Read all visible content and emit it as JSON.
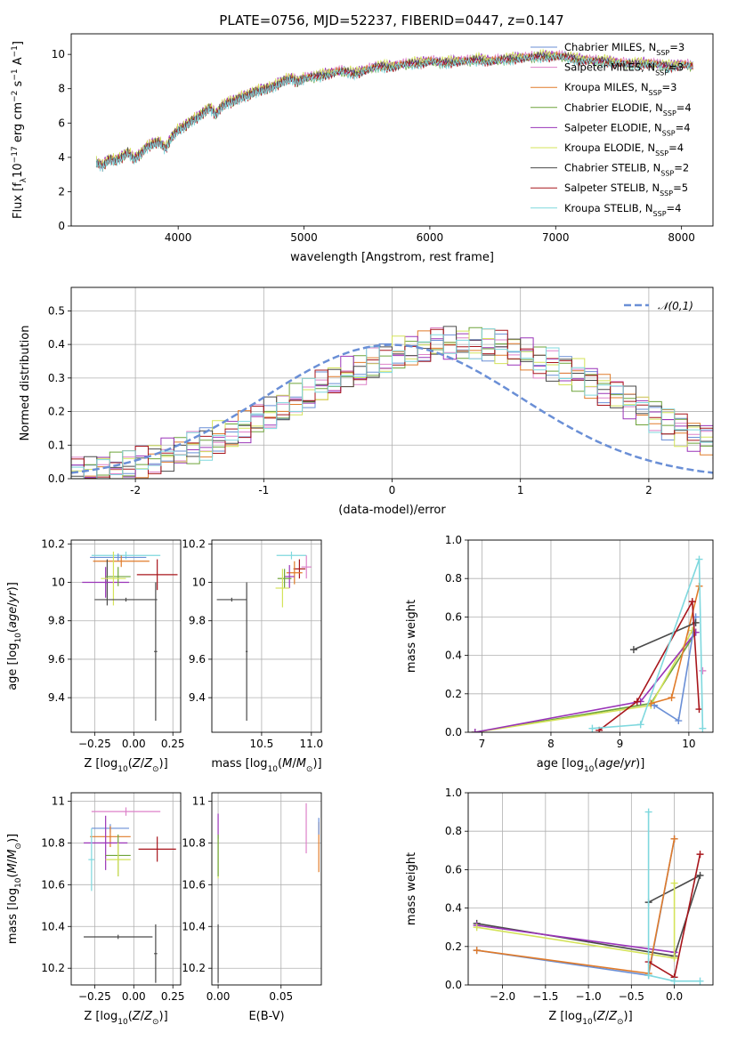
{
  "figure": {
    "title": "PLATE=0756, MJD=52237, FIBERID=0447, z=0.147"
  },
  "colors": {
    "chabrier_miles": "#6a8fd6",
    "salpeter_miles": "#dd82c9",
    "kroupa_miles": "#e07b2a",
    "chabrier_elodie": "#6ea33a",
    "salpeter_elodie": "#9a34b8",
    "kroupa_elodie": "#d4e35a",
    "chabrier_stelib": "#4a4a4a",
    "salpeter_stelib": "#a8161c",
    "kroupa_stelib": "#7fd8de",
    "normal_curve": "#6a8fd6",
    "grid": "#b0b0b0"
  },
  "chart_data": [
    {
      "id": "spectrum",
      "type": "line",
      "xlabel": "wavelength [Angstrom, rest frame]",
      "ylabel_html": "Flux [f<tspan baseline-shift='sub' font-size='9'>λ</tspan>10<tspan baseline-shift='super' font-size='9'>−17</tspan> erg cm<tspan baseline-shift='super' font-size='9'>−2</tspan> s<tspan baseline-shift='super' font-size='9'>−1</tspan> A<tspan baseline-shift='super' font-size='9'>−1</tspan>]",
      "xlim": [
        3150,
        8250
      ],
      "ylim": [
        0,
        11.2
      ],
      "xticks": [
        4000,
        5000,
        6000,
        7000,
        8000
      ],
      "yticks": [
        0,
        2,
        4,
        6,
        8,
        10
      ],
      "grid": false,
      "legend_position": "top-right",
      "data_x": [
        3350,
        3400,
        3450,
        3500,
        3550,
        3600,
        3650,
        3700,
        3750,
        3800,
        3850,
        3900,
        3950,
        4000,
        4050,
        4100,
        4150,
        4200,
        4250,
        4300,
        4350,
        4400,
        4450,
        4500,
        4550,
        4600,
        4650,
        4700,
        4750,
        4800,
        4850,
        4900,
        4950,
        5000,
        5100,
        5200,
        5300,
        5400,
        5500,
        5600,
        5700,
        5800,
        5900,
        6000,
        6100,
        6200,
        6300,
        6400,
        6500,
        6600,
        6700,
        6800,
        6900,
        7000,
        7100,
        7200,
        7300,
        7400,
        7500,
        7600,
        7700,
        7800,
        7900,
        8000,
        8100
      ],
      "data_y": [
        3.7,
        3.5,
        3.9,
        3.8,
        4.0,
        4.3,
        3.9,
        4.2,
        4.6,
        4.8,
        4.9,
        4.5,
        5.2,
        5.6,
        5.8,
        6.1,
        6.3,
        6.6,
        6.9,
        6.5,
        7.0,
        7.2,
        7.3,
        7.5,
        7.6,
        7.8,
        7.9,
        8.0,
        8.1,
        8.3,
        8.5,
        8.6,
        8.4,
        8.6,
        8.7,
        8.9,
        9.0,
        8.9,
        9.1,
        9.3,
        9.3,
        9.4,
        9.5,
        9.6,
        9.5,
        9.6,
        9.6,
        9.7,
        9.6,
        9.7,
        9.8,
        9.8,
        9.9,
        9.9,
        9.8,
        9.7,
        9.6,
        9.6,
        9.5,
        9.4,
        9.5,
        9.4,
        9.3,
        9.4,
        9.3
      ],
      "series": [
        {
          "label_html": "Chabrier MILES, N<tspan baseline-shift='sub' font-size='8'>SSP</tspan>=3",
          "color_key": "chabrier_miles",
          "offset": 0.05
        },
        {
          "label_html": "Salpeter MILES, N<tspan baseline-shift='sub' font-size='8'>SSP</tspan>=3",
          "color_key": "salpeter_miles",
          "offset": 0.1
        },
        {
          "label_html": "Kroupa MILES, N<tspan baseline-shift='sub' font-size='8'>SSP</tspan>=3",
          "color_key": "kroupa_miles",
          "offset": 0.0
        },
        {
          "label_html": "Chabrier ELODIE, N<tspan baseline-shift='sub' font-size='8'>SSP</tspan>=4",
          "color_key": "chabrier_elodie",
          "offset": -0.05
        },
        {
          "label_html": "Salpeter ELODIE, N<tspan baseline-shift='sub' font-size='8'>SSP</tspan>=4",
          "color_key": "salpeter_elodie",
          "offset": 0.08
        },
        {
          "label_html": "Kroupa ELODIE, N<tspan baseline-shift='sub' font-size='8'>SSP</tspan>=4",
          "color_key": "kroupa_elodie",
          "offset": 0.12
        },
        {
          "label_html": "Chabrier STELIB, N<tspan baseline-shift='sub' font-size='8'>SSP</tspan>=2",
          "color_key": "chabrier_stelib",
          "offset": 0.0
        },
        {
          "label_html": "Salpeter STELIB, N<tspan baseline-shift='sub' font-size='8'>SSP</tspan>=5",
          "color_key": "salpeter_stelib",
          "offset": -0.08
        },
        {
          "label_html": "Kroupa STELIB, N<tspan baseline-shift='sub' font-size='8'>SSP</tspan>=4",
          "color_key": "kroupa_stelib",
          "offset": -0.1
        }
      ]
    },
    {
      "id": "residual_histogram",
      "type": "line",
      "xlabel": "(data-model)/error",
      "ylabel": "Normed distribution",
      "xlim": [
        -2.5,
        2.5
      ],
      "ylim": [
        0,
        0.57
      ],
      "xticks": [
        -2,
        -1,
        0,
        1,
        2
      ],
      "yticks": [
        0.0,
        0.1,
        0.2,
        0.3,
        0.4,
        0.5
      ],
      "grid": true,
      "legend_position": "top-right",
      "normal_label": "𝒩(0,1)",
      "bin_width": 0.1,
      "bin_start": -2.5,
      "hist_base": [
        0.02,
        0.02,
        0.03,
        0.03,
        0.04,
        0.05,
        0.06,
        0.07,
        0.08,
        0.09,
        0.1,
        0.12,
        0.13,
        0.15,
        0.17,
        0.19,
        0.21,
        0.23,
        0.25,
        0.27,
        0.29,
        0.31,
        0.32,
        0.34,
        0.35,
        0.37,
        0.38,
        0.39,
        0.4,
        0.4,
        0.4,
        0.4,
        0.4,
        0.39,
        0.38,
        0.37,
        0.35,
        0.34,
        0.32,
        0.31,
        0.29,
        0.27,
        0.25,
        0.23,
        0.21,
        0.19,
        0.17,
        0.15,
        0.13,
        0.12,
        0.1,
        0.09,
        0.08,
        0.07,
        0.06,
        0.05,
        0.04,
        0.03,
        0.03,
        0.02
      ]
    },
    {
      "id": "age_vs_Z",
      "type": "scatter",
      "xlabel_html": "Z [log<tspan baseline-shift='sub' font-size='9'>10</tspan>(<tspan font-style='italic'>Z</tspan>/<tspan font-style='italic'>Z</tspan><tspan baseline-shift='sub' font-size='9'>⊙</tspan>)]",
      "ylabel_html": "age  [log<tspan baseline-shift='sub' font-size='9'>10</tspan>(<tspan font-style='italic'>age</tspan>/<tspan font-style='italic'>yr</tspan>)]",
      "xlim": [
        -0.4,
        0.3
      ],
      "ylim": [
        9.22,
        10.22
      ],
      "xticks": [
        -0.25,
        0.0,
        0.25
      ],
      "xtick_labels": [
        "−0.25",
        "0.00",
        "0.25"
      ],
      "yticks": [
        9.4,
        9.6,
        9.8,
        10.0,
        10.2
      ],
      "grid": true,
      "points": [
        {
          "color_key": "kroupa_stelib",
          "x": -0.05,
          "y": 10.14,
          "xerr": 0.22,
          "yerr": 0.02
        },
        {
          "color_key": "chabrier_miles",
          "x": -0.1,
          "y": 10.13,
          "xerr": 0.18,
          "yerr": 0.02
        },
        {
          "color_key": "kroupa_miles",
          "x": -0.08,
          "y": 10.11,
          "xerr": 0.18,
          "yerr": 0.03
        },
        {
          "color_key": "chabrier_stelib",
          "x": -0.17,
          "y": 10.0,
          "xerr": 0.01,
          "yerr": 0.12
        },
        {
          "color_key": "salpeter_elodie",
          "x": -0.18,
          "y": 10.0,
          "xerr": 0.15,
          "yerr": 0.08
        },
        {
          "color_key": "chabrier_elodie",
          "x": -0.1,
          "y": 10.03,
          "xerr": 0.08,
          "yerr": 0.05
        },
        {
          "color_key": "kroupa_elodie",
          "x": -0.13,
          "y": 10.02,
          "xerr": 0.08,
          "yerr": 0.14
        },
        {
          "color_key": "salpeter_stelib",
          "x": 0.15,
          "y": 10.04,
          "xerr": 0.13,
          "yerr": 0.08
        },
        {
          "color_key": "chabrier_stelib",
          "x": -0.05,
          "y": 9.91,
          "xerr": 0.2,
          "yerr": 0.01
        },
        {
          "color_key": "chabrier_stelib",
          "x": 0.14,
          "y": 9.64,
          "xerr": 0.01,
          "yerr": 0.36
        }
      ]
    },
    {
      "id": "age_vs_mass",
      "type": "scatter",
      "xlabel_html": "mass [log<tspan baseline-shift='sub' font-size='9'>10</tspan>(<tspan font-style='italic'>M</tspan>/<tspan font-style='italic'>M</tspan><tspan baseline-shift='sub' font-size='9'>⊙</tspan>)]",
      "xlim": [
        10.0,
        11.1
      ],
      "ylim": [
        9.22,
        10.22
      ],
      "xticks": [
        10.5,
        11.0
      ],
      "xtick_labels": [
        "10.5",
        "11.0"
      ],
      "yticks": [
        9.4,
        9.6,
        9.8,
        10.0,
        10.2
      ],
      "grid": true,
      "points": [
        {
          "color_key": "kroupa_stelib",
          "x": 10.8,
          "y": 10.14,
          "xerr": 0.15,
          "yerr": 0.02
        },
        {
          "color_key": "salpeter_miles",
          "x": 10.95,
          "y": 10.08,
          "xerr": 0.05,
          "yerr": 0.06
        },
        {
          "color_key": "salpeter_stelib",
          "x": 10.88,
          "y": 10.07,
          "xerr": 0.06,
          "yerr": 0.05
        },
        {
          "color_key": "kroupa_miles",
          "x": 10.83,
          "y": 10.05,
          "xerr": 0.08,
          "yerr": 0.06
        },
        {
          "color_key": "salpeter_elodie",
          "x": 10.78,
          "y": 10.03,
          "xerr": 0.05,
          "yerr": 0.06
        },
        {
          "color_key": "chabrier_elodie",
          "x": 10.73,
          "y": 10.02,
          "xerr": 0.07,
          "yerr": 0.05
        },
        {
          "color_key": "kroupa_elodie",
          "x": 10.71,
          "y": 9.97,
          "xerr": 0.07,
          "yerr": 0.1
        },
        {
          "color_key": "chabrier_stelib",
          "x": 10.35,
          "y": 9.64,
          "xerr": 0.01,
          "yerr": 0.36
        },
        {
          "color_key": "chabrier_stelib",
          "x": 10.2,
          "y": 9.91,
          "xerr": 0.15,
          "yerr": 0.01
        }
      ]
    },
    {
      "id": "weight_vs_age",
      "type": "line",
      "xlabel_html": "age  [log<tspan baseline-shift='sub' font-size='9'>10</tspan>(<tspan font-style='italic'>age</tspan>/<tspan font-style='italic'>yr</tspan>)]",
      "ylabel": "mass weight",
      "xlim": [
        6.8,
        10.35
      ],
      "ylim": [
        0,
        1.0
      ],
      "xticks": [
        7,
        8,
        9,
        10
      ],
      "yticks": [
        0.0,
        0.2,
        0.4,
        0.6,
        0.8,
        1.0
      ],
      "grid": true,
      "series": [
        {
          "color_key": "chabrier_elodie",
          "x": [
            6.9,
            9.45,
            10.1
          ],
          "y": [
            0.0,
            0.15,
            0.52
          ]
        },
        {
          "color_key": "kroupa_elodie",
          "x": [
            6.9,
            9.45,
            10.05
          ],
          "y": [
            0.0,
            0.14,
            0.53
          ]
        },
        {
          "color_key": "salpeter_elodie",
          "x": [
            6.9,
            9.3,
            10.1
          ],
          "y": [
            0.0,
            0.16,
            0.52
          ]
        },
        {
          "color_key": "chabrier_miles",
          "x": [
            9.5,
            9.85,
            10.1
          ],
          "y": [
            0.14,
            0.06,
            0.6
          ]
        },
        {
          "color_key": "kroupa_miles",
          "x": [
            9.45,
            9.75,
            10.15
          ],
          "y": [
            0.15,
            0.18,
            0.76
          ]
        },
        {
          "color_key": "salpeter_miles",
          "x": [
            10.2
          ],
          "y": [
            0.32
          ]
        },
        {
          "color_key": "chabrier_stelib",
          "x": [
            9.2,
            10.1
          ],
          "y": [
            0.43,
            0.57
          ]
        },
        {
          "color_key": "salpeter_stelib",
          "x": [
            8.7,
            9.25,
            10.05,
            10.15
          ],
          "y": [
            0.01,
            0.16,
            0.68,
            0.12
          ]
        },
        {
          "color_key": "kroupa_stelib",
          "x": [
            8.6,
            9.3,
            10.15,
            10.2
          ],
          "y": [
            0.02,
            0.04,
            0.9,
            0.02
          ]
        }
      ]
    },
    {
      "id": "mass_vs_Z",
      "type": "scatter",
      "xlabel_html": "Z [log<tspan baseline-shift='sub' font-size='9'>10</tspan>(<tspan font-style='italic'>Z</tspan>/<tspan font-style='italic'>Z</tspan><tspan baseline-shift='sub' font-size='9'>⊙</tspan>)]",
      "ylabel_html": "mass [log<tspan baseline-shift='sub' font-size='9'>10</tspan>(<tspan font-style='italic'>M</tspan>/<tspan font-style='italic'>M</tspan><tspan baseline-shift='sub' font-size='9'>⊙</tspan>)]",
      "xlim": [
        -0.4,
        0.3
      ],
      "ylim": [
        10.12,
        11.04
      ],
      "xticks": [
        -0.25,
        0.0,
        0.25
      ],
      "xtick_labels": [
        "−0.25",
        "0.00",
        "0.25"
      ],
      "yticks": [
        10.2,
        10.4,
        10.6,
        10.8,
        11.0
      ],
      "grid": true,
      "points": [
        {
          "color_key": "salpeter_miles",
          "x": -0.05,
          "y": 10.95,
          "xerr": 0.22,
          "yerr": 0.02
        },
        {
          "color_key": "chabrier_miles",
          "x": -0.15,
          "y": 10.87,
          "xerr": 0.12,
          "yerr": 0.02
        },
        {
          "color_key": "kroupa_miles",
          "x": -0.15,
          "y": 10.83,
          "xerr": 0.13,
          "yerr": 0.05
        },
        {
          "color_key": "salpeter_elodie",
          "x": -0.18,
          "y": 10.8,
          "xerr": 0.14,
          "yerr": 0.13
        },
        {
          "color_key": "kroupa_stelib",
          "x": -0.27,
          "y": 10.72,
          "xerr": 0.02,
          "yerr": 0.15
        },
        {
          "color_key": "chabrier_elodie",
          "x": -0.1,
          "y": 10.74,
          "xerr": 0.08,
          "yerr": 0.1
        },
        {
          "color_key": "kroupa_elodie",
          "x": -0.1,
          "y": 10.72,
          "xerr": 0.08,
          "yerr": 0.08
        },
        {
          "color_key": "salpeter_stelib",
          "x": 0.15,
          "y": 10.77,
          "xerr": 0.12,
          "yerr": 0.06
        },
        {
          "color_key": "chabrier_stelib",
          "x": 0.14,
          "y": 10.27,
          "xerr": 0.01,
          "yerr": 0.14
        },
        {
          "color_key": "chabrier_stelib",
          "x": -0.1,
          "y": 10.35,
          "xerr": 0.22,
          "yerr": 0.01
        }
      ]
    },
    {
      "id": "mass_vs_ebv",
      "type": "scatter",
      "xlabel": "E(B-V)",
      "xlim": [
        -0.005,
        0.082
      ],
      "ylim": [
        10.12,
        11.04
      ],
      "xticks": [
        0.0,
        0.05
      ],
      "xtick_labels": [
        "0.00",
        "0.05"
      ],
      "yticks": [
        10.2,
        10.4,
        10.6,
        10.8,
        11.0
      ],
      "grid": true,
      "points": [
        {
          "color_key": "salpeter_elodie",
          "x": 0.0,
          "y": 10.88,
          "xerr": 0.0,
          "yerr": 0.06
        },
        {
          "color_key": "kroupa_elodie",
          "x": 0.0,
          "y": 10.73,
          "xerr": 0.0,
          "yerr": 0.1
        },
        {
          "color_key": "chabrier_elodie",
          "x": 0.0,
          "y": 10.74,
          "xerr": 0.0,
          "yerr": 0.1
        },
        {
          "color_key": "chabrier_stelib",
          "x": 0.0,
          "y": 10.27,
          "xerr": 0.0,
          "yerr": 0.14
        },
        {
          "color_key": "salpeter_miles",
          "x": 0.07,
          "y": 10.87,
          "xerr": 0.0,
          "yerr": 0.12
        },
        {
          "color_key": "kroupa_miles",
          "x": 0.08,
          "y": 10.78,
          "xerr": 0.0,
          "yerr": 0.12
        },
        {
          "color_key": "chabrier_miles",
          "x": 0.08,
          "y": 10.88,
          "xerr": 0.0,
          "yerr": 0.04
        }
      ]
    },
    {
      "id": "weight_vs_Z",
      "type": "line",
      "xlabel_html": "Z [log<tspan baseline-shift='sub' font-size='9'>10</tspan>(<tspan font-style='italic'>Z</tspan>/<tspan font-style='italic'>Z</tspan><tspan baseline-shift='sub' font-size='9'>⊙</tspan>)]",
      "ylabel": "mass weight",
      "xlim": [
        -2.4,
        0.45
      ],
      "ylim": [
        0,
        1.0
      ],
      "xticks": [
        -2.0,
        -1.5,
        -1.0,
        -0.5,
        0.0
      ],
      "xtick_labels": [
        "−2.0",
        "−1.5",
        "−1.0",
        "−0.5",
        "0.0"
      ],
      "yticks": [
        0.0,
        0.2,
        0.4,
        0.6,
        0.8,
        1.0
      ],
      "grid": true,
      "series": [
        {
          "color_key": "chabrier_stelib",
          "x": [
            -2.3,
            0.0,
            0.3,
            -0.3
          ],
          "y": [
            0.32,
            0.15,
            0.57,
            0.43
          ]
        },
        {
          "color_key": "salpeter_elodie",
          "x": [
            -2.3,
            0.0
          ],
          "y": [
            0.31,
            0.17
          ]
        },
        {
          "color_key": "kroupa_elodie",
          "x": [
            -2.3,
            0.0,
            0.0
          ],
          "y": [
            0.3,
            0.14,
            0.53
          ]
        },
        {
          "color_key": "chabrier_miles",
          "x": [
            -2.3,
            -0.3,
            0.0
          ],
          "y": [
            0.18,
            0.05,
            0.76
          ]
        },
        {
          "color_key": "kroupa_miles",
          "x": [
            -2.3,
            -0.3,
            0.0
          ],
          "y": [
            0.18,
            0.06,
            0.76
          ]
        },
        {
          "color_key": "salpeter_stelib",
          "x": [
            -0.3,
            0.0,
            0.3
          ],
          "y": [
            0.12,
            0.04,
            0.68
          ]
        },
        {
          "color_key": "kroupa_stelib",
          "x": [
            -0.3,
            -0.3,
            0.0,
            0.3
          ],
          "y": [
            0.9,
            0.05,
            0.02,
            0.02
          ]
        }
      ]
    }
  ]
}
